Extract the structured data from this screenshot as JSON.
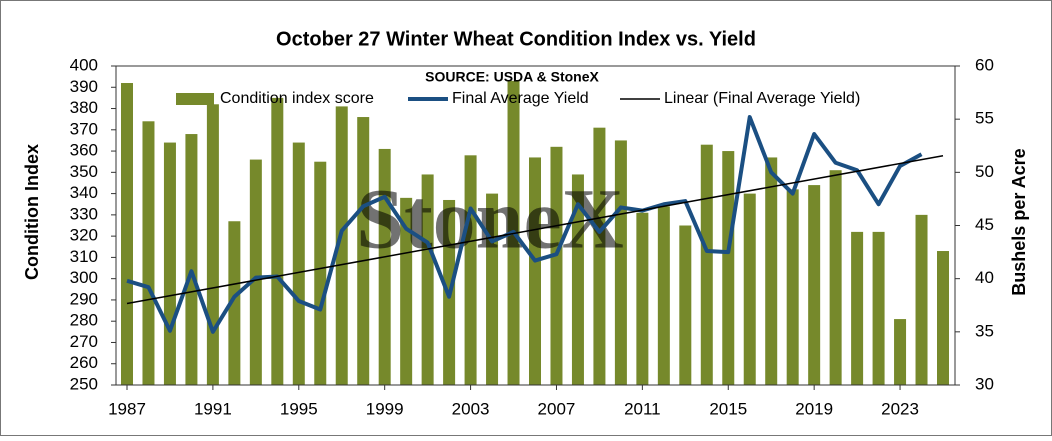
{
  "chart_data": {
    "type": "bar_line",
    "title": "October 27 Winter Wheat Condition Index vs. Yield",
    "subtitle": "SOURCE: USDA & StoneX",
    "watermark": "StoneX",
    "y_label": "Condition Index",
    "y2_label": "Bushels per Acre",
    "categories": [
      "1987",
      null,
      null,
      null,
      "1991",
      null,
      null,
      null,
      "1995",
      null,
      null,
      null,
      "1999",
      null,
      null,
      null,
      "2003",
      null,
      null,
      null,
      "2007",
      null,
      null,
      null,
      "2011",
      null,
      null,
      null,
      "2015",
      null,
      null,
      null,
      "2019",
      null,
      null,
      null,
      "2023",
      null,
      null
    ],
    "series": [
      {
        "name": "Condition index score",
        "color": "#76892b",
        "type": "bar",
        "values": [
          392,
          374,
          364,
          368,
          382,
          327,
          356,
          385,
          364,
          355,
          381,
          376,
          361,
          338,
          349,
          337,
          358,
          340,
          393,
          357,
          362,
          349,
          371,
          365,
          331,
          334,
          325,
          363,
          360,
          340,
          357,
          342,
          344,
          351,
          322,
          322,
          281,
          330,
          313
        ]
      },
      {
        "name": "Final Average Yield",
        "color": "#1b4f82",
        "type": "line",
        "axis": "y2",
        "values": [
          39.8,
          39.2,
          35.1,
          40.7,
          35.0,
          38.3,
          40.1,
          40.2,
          37.9,
          37.1,
          44.5,
          46.8,
          47.7,
          44.7,
          43.4,
          38.3,
          46.6,
          43.5,
          44.4,
          41.7,
          42.3,
          47.0,
          44.4,
          46.7,
          46.4,
          47.0,
          47.3,
          42.6,
          42.5,
          55.2,
          50.0,
          48.0,
          53.6,
          50.9,
          50.2,
          47.0,
          50.6,
          51.7,
          null
        ]
      },
      {
        "name": "Linear (Final Average Yield)",
        "color": "#000000",
        "type": "trend",
        "axis": "y2",
        "of": 1
      }
    ],
    "ylim": [
      250,
      400
    ],
    "yticks": [
      250,
      260,
      270,
      280,
      290,
      300,
      310,
      320,
      330,
      340,
      350,
      360,
      370,
      380,
      390,
      400
    ],
    "y2lim": [
      30,
      60
    ],
    "y2ticks": [
      30,
      35,
      40,
      45,
      50,
      55,
      60
    ],
    "grid": false
  }
}
